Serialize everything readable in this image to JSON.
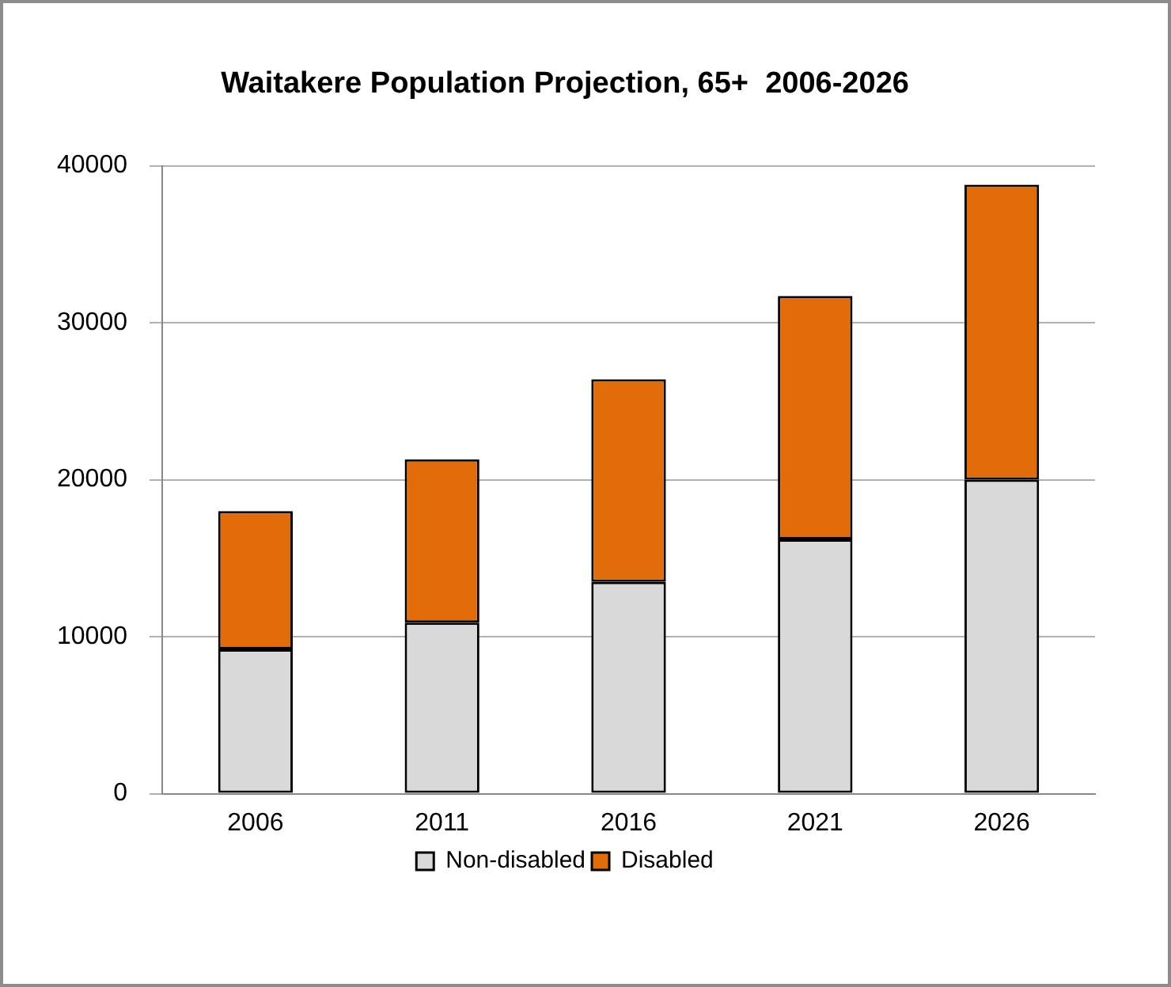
{
  "chart_data": {
    "type": "bar",
    "title": "Waitakere Population Projection, 65+  2006-2026",
    "categories": [
      "2006",
      "2011",
      "2016",
      "2021",
      "2026"
    ],
    "stacked": true,
    "series": [
      {
        "name": "Non-disabled",
        "color": "#d9d9d9",
        "values": [
          9200,
          10900,
          13500,
          16200,
          20000
        ]
      },
      {
        "name": "Disabled",
        "color": "#e36c0a",
        "values": [
          8800,
          10400,
          12900,
          15500,
          18800
        ]
      }
    ],
    "ylim": [
      0,
      40000
    ],
    "yticks": [
      0,
      10000,
      20000,
      30000,
      40000
    ],
    "grid": "y",
    "legend": "bottom"
  }
}
